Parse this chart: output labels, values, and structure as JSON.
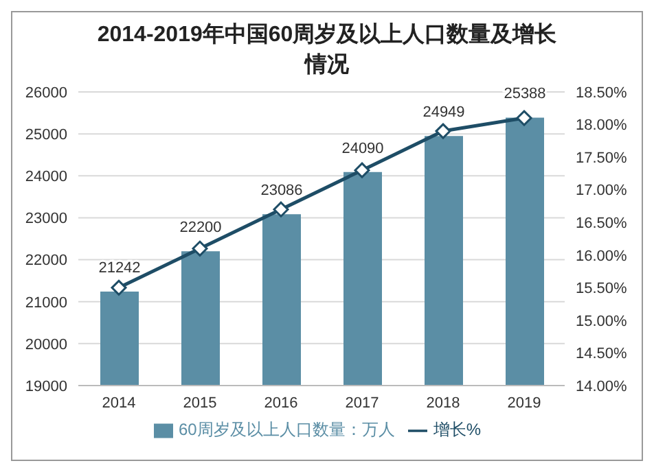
{
  "chart_data": {
    "type": "bar",
    "title": "2014-2019年中国60周岁及以上人口数量及增长情况",
    "categories": [
      "2014",
      "2015",
      "2016",
      "2017",
      "2018",
      "2019"
    ],
    "series": [
      {
        "name": "60周岁及以上人口数量：万人",
        "color": "#5b8ea5",
        "values": [
          21242,
          22200,
          23086,
          24090,
          24949,
          25388
        ],
        "value_labels": [
          "21242",
          "22200",
          "23086",
          "24090",
          "24949",
          "25388"
        ]
      },
      {
        "name": "增长%",
        "type": "line",
        "axis": "y2",
        "color": "#1e4d66",
        "marker": "diamond",
        "values": [
          15.5,
          16.1,
          16.7,
          17.3,
          17.9,
          18.1
        ]
      }
    ],
    "ylim": [
      19000,
      26000
    ],
    "yticks": [
      19000,
      20000,
      21000,
      22000,
      23000,
      24000,
      25000,
      26000
    ],
    "y2lim": [
      14,
      18.5
    ],
    "y2ticks": [
      {
        "value": 14,
        "label": "14.00%"
      },
      {
        "value": 14.5,
        "label": "14.50%"
      },
      {
        "value": 15,
        "label": "15.00%"
      },
      {
        "value": 15.5,
        "label": "15.50%"
      },
      {
        "value": 16,
        "label": "16.00%"
      },
      {
        "value": 16.5,
        "label": "16.50%"
      },
      {
        "value": 17,
        "label": "17.00%"
      },
      {
        "value": 17.5,
        "label": "17.50%"
      },
      {
        "value": 18,
        "label": "18.00%"
      },
      {
        "value": 18.5,
        "label": "18.50%"
      }
    ],
    "grid": "y",
    "legend": "bottom"
  }
}
